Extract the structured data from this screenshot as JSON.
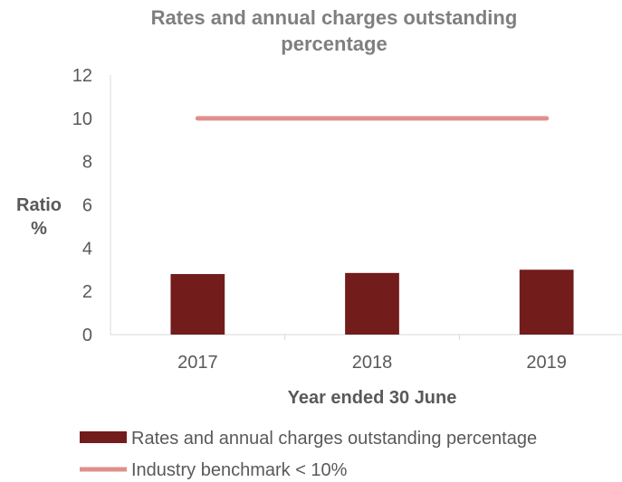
{
  "chart_data": {
    "type": "bar",
    "title_lines": [
      "Rates and annual charges outstanding",
      "percentage"
    ],
    "xlabel": "Year ended 30 June",
    "ylabel_lines": [
      "Ratio",
      "%"
    ],
    "categories": [
      "2017",
      "2018",
      "2019"
    ],
    "ylim": [
      0,
      12
    ],
    "yticks": [
      0,
      2,
      4,
      6,
      8,
      10,
      12
    ],
    "grid": false,
    "legend_position": "bottom",
    "series": [
      {
        "name": "Rates and annual charges outstanding percentage",
        "type": "bar",
        "values": [
          2.8,
          2.85,
          3.0
        ],
        "color": "#731c1c"
      },
      {
        "name": "Industry benchmark < 10%",
        "type": "line",
        "values": [
          10,
          10,
          10
        ],
        "color": "#e0908a"
      }
    ]
  }
}
